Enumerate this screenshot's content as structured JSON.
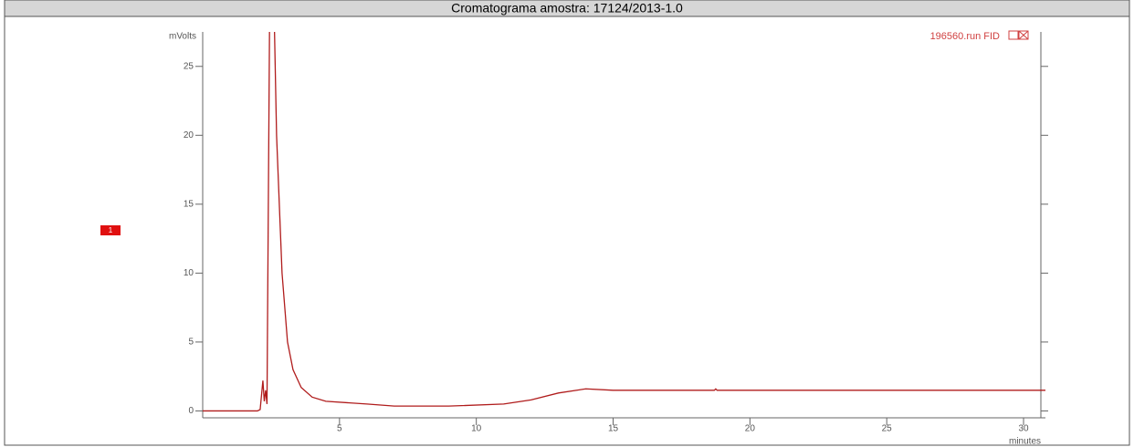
{
  "chart_data": {
    "type": "line",
    "title": "Cromatograma amostra: 17124/2013-1.0",
    "y_label": "mVolts",
    "x_label": "minutes",
    "run_label": "196560.run FID",
    "peak_marker": "1",
    "series": [
      {
        "name": "196560.run FID",
        "color": "#b01c1c",
        "x": [
          0,
          2.0,
          2.1,
          2.2,
          2.25,
          2.3,
          2.35,
          2.45,
          2.6,
          2.7,
          2.9,
          3.1,
          3.3,
          3.6,
          4.0,
          4.5,
          6.0,
          7.0,
          9.0,
          11.0,
          12.0,
          13.0,
          14.0,
          15.0,
          18.7,
          18.75,
          18.8,
          30.8
        ],
        "values": [
          0,
          0,
          0.1,
          2.2,
          0.7,
          1.5,
          0.5,
          30,
          30,
          20,
          10,
          5,
          3,
          1.7,
          1.0,
          0.7,
          0.5,
          0.35,
          0.35,
          0.5,
          0.8,
          1.3,
          1.6,
          1.5,
          1.5,
          1.6,
          1.5,
          1.5
        ]
      }
    ],
    "xlim": [
      0,
      30.8
    ],
    "ylim": [
      -0.5,
      27.5
    ],
    "xticks": [
      5,
      10,
      15,
      20,
      25,
      30
    ],
    "yticks": [
      0,
      5,
      10,
      15,
      20,
      25
    ]
  }
}
